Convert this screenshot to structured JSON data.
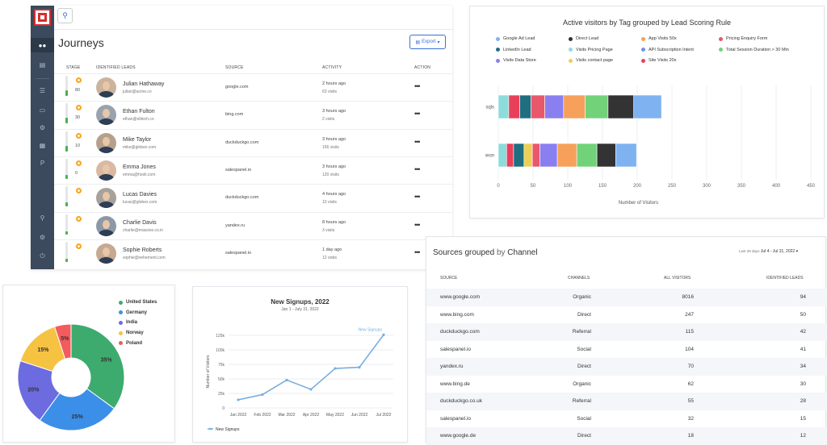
{
  "journeys": {
    "title": "Journeys",
    "export_label": "Export",
    "columns": [
      "STAGE",
      "IDENTIFIED LEADS",
      "SOURCE",
      "ACTIVITY",
      "ACTION"
    ],
    "rows": [
      {
        "score": "80",
        "name": "Julian Hathaway",
        "email": "julian@acme.co",
        "source": "google.com",
        "time": "2 hours ago",
        "visits": "63 visits",
        "fill": 0.3
      },
      {
        "score": "30",
        "name": "Ethan Fulton",
        "email": "ethan@elitech.co",
        "source": "bing.com",
        "time": "3 hours ago",
        "visits": "2 visits",
        "fill": 0.3
      },
      {
        "score": "10",
        "name": "Mike Taylor",
        "email": "mike@globex.com",
        "source": "duckduckgo.com",
        "time": "3 hours ago",
        "visits": "156 visits",
        "fill": 0.25
      },
      {
        "score": "0",
        "name": "Emma Jones",
        "email": "emma@hooli.com",
        "source": "salespanel.io",
        "time": "3 hours ago",
        "visits": "120 visits",
        "fill": 0.2
      },
      {
        "score": "",
        "name": "Lucas Davies",
        "email": "lucas@globex.com",
        "source": "duckduckgo.com",
        "time": "4 hours ago",
        "visits": "10 visits",
        "fill": 0.2
      },
      {
        "score": "",
        "name": "Charlie Davis",
        "email": "charlie@massive.co.in",
        "source": "yandex.ru",
        "time": "8 hours ago",
        "visits": "3 visits",
        "fill": 0.15
      },
      {
        "score": "",
        "name": "Sophie Roberts",
        "email": "sophie@vehement.com",
        "source": "salespanel.io",
        "time": "1 day ago",
        "visits": "12 visits",
        "fill": 0.15
      }
    ]
  },
  "visitors": {
    "title": "Active visitors by Tag grouped by Lead Scoring Rule",
    "xlabel": "Number of Visitors",
    "legend": [
      {
        "label": "Google Ad Lead",
        "color": "#7fb2f0"
      },
      {
        "label": "Direct Lead",
        "color": "#333333"
      },
      {
        "label": "App Visits 50x",
        "color": "#f6a05b"
      },
      {
        "label": "Pricing Enquiry Form",
        "color": "#e9576b"
      },
      {
        "label": "LinkedIn Lead",
        "color": "#1f6f80"
      },
      {
        "label": "Visits Pricing Page",
        "color": "#8ddcdc"
      },
      {
        "label": "API Subscription Intent",
        "color": "#6f8ff0"
      },
      {
        "label": "Total Session Duration > 30 Min",
        "color": "#72d27a"
      },
      {
        "label": "Visits Data Store",
        "color": "#8a7ff0"
      },
      {
        "label": "Visits contact page",
        "color": "#ecd056"
      },
      {
        "label": "Site Visits 20x",
        "color": "#ea3f5a"
      }
    ]
  },
  "chart_data": [
    {
      "type": "bar",
      "orientation": "horizontal",
      "stacked": true,
      "title": "Active visitors by Tag grouped by Lead Scoring Rule",
      "xlabel": "Number of Visitors",
      "categories": [
        "sqls",
        "won"
      ],
      "xlim": [
        0,
        450
      ],
      "xticks": [
        0,
        50,
        100,
        150,
        200,
        250,
        300,
        350,
        400,
        450
      ],
      "series": [
        {
          "name": "Visits Pricing Page",
          "color": "#8ddcdc",
          "values": [
            15,
            12
          ]
        },
        {
          "name": "Site Visits 20x",
          "color": "#ea3f5a",
          "values": [
            16,
            10
          ]
        },
        {
          "name": "LinkedIn Lead",
          "color": "#1f6f80",
          "values": [
            16,
            15
          ]
        },
        {
          "name": "Visits contact page",
          "color": "#ecd056",
          "values": [
            0,
            12
          ]
        },
        {
          "name": "Pricing Enquiry Form",
          "color": "#e9576b",
          "values": [
            20,
            11
          ]
        },
        {
          "name": "Visits Data Store",
          "color": "#8a7ff0",
          "values": [
            27,
            25
          ]
        },
        {
          "name": "App Visits 50x",
          "color": "#f6a05b",
          "values": [
            31,
            28
          ]
        },
        {
          "name": "Total Session Duration > 30 Min",
          "color": "#72d27a",
          "values": [
            33,
            29
          ]
        },
        {
          "name": "Direct Lead",
          "color": "#333333",
          "values": [
            37,
            27
          ]
        },
        {
          "name": "Google Ad Lead",
          "color": "#7fb2f0",
          "values": [
            40,
            30
          ]
        }
      ]
    },
    {
      "type": "pie",
      "donut": true,
      "legend_position": "top-right",
      "slices": [
        {
          "name": "United States",
          "value": 35,
          "label": "35%",
          "color": "#3dab6e"
        },
        {
          "name": "Germany",
          "value": 25,
          "label": "25%",
          "color": "#3b8fe8"
        },
        {
          "name": "India",
          "value": 20,
          "label": "20%",
          "color": "#6c6be0"
        },
        {
          "name": "Norway",
          "value": 15,
          "label": "15%",
          "color": "#f5c242"
        },
        {
          "name": "Poland",
          "value": 5,
          "label": "5%",
          "color": "#f25c5c"
        }
      ]
    },
    {
      "type": "line",
      "title": "New Signups, 2022",
      "subtitle": "Jan 1 - July 31, 2022",
      "ylabel": "Number of Visitors",
      "categories": [
        "Jan 2022",
        "Feb 2022",
        "Mar 2022",
        "Apr 2022",
        "May 2022",
        "Jun 2022",
        "Jul 2022"
      ],
      "ylim": [
        0,
        125000
      ],
      "yticks": [
        "0",
        "25k",
        "50k",
        "75k",
        "100k",
        "125k"
      ],
      "series": [
        {
          "name": "New Signups",
          "color": "#7aaee0",
          "values": [
            14000,
            23000,
            48000,
            32000,
            68000,
            70000,
            126000
          ]
        }
      ]
    }
  ],
  "sources": {
    "title_main": "Sources grouped",
    "title_by": "by",
    "title_channel": "Channel",
    "range_label": "Last 28 days",
    "range_value": "Jul 4 - Jul 31, 2022",
    "columns": [
      "SOURCE",
      "CHANNELS",
      "ALL VISITORS",
      "IDENTIFIED LEADS"
    ],
    "rows": [
      {
        "source": "www.google.com",
        "channel": "Organic",
        "visitors": "8016",
        "leads": "94"
      },
      {
        "source": "www.bing.com",
        "channel": "Direct",
        "visitors": "247",
        "leads": "50"
      },
      {
        "source": "duckduckgo.com",
        "channel": "Referral",
        "visitors": "115",
        "leads": "42"
      },
      {
        "source": "salespanel.io",
        "channel": "Social",
        "visitors": "104",
        "leads": "41"
      },
      {
        "source": "yandex.ru",
        "channel": "Direct",
        "visitors": "70",
        "leads": "34"
      },
      {
        "source": "www.bing.de",
        "channel": "Organic",
        "visitors": "62",
        "leads": "30"
      },
      {
        "source": "duckduckgo.co.uk",
        "channel": "Referral",
        "visitors": "55",
        "leads": "28"
      },
      {
        "source": "salespanel.io",
        "channel": "Social",
        "visitors": "32",
        "leads": "15"
      },
      {
        "source": "www.google.de",
        "channel": "Direct",
        "visitors": "18",
        "leads": "12"
      }
    ]
  },
  "icons": {
    "sidebar": [
      "users-icon",
      "chart-icon",
      "list-icon",
      "browser-icon",
      "gear-icon",
      "grid-icon",
      "p-icon",
      "search-icon",
      "settings-icon",
      "power-icon"
    ]
  }
}
